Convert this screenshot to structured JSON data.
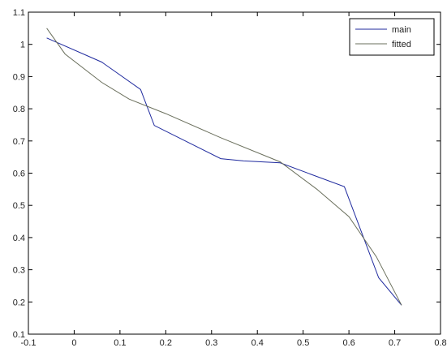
{
  "chart_data": {
    "type": "line",
    "title": "",
    "xlabel": "",
    "ylabel": "",
    "xlim": [
      -0.1,
      0.8
    ],
    "ylim": [
      0.1,
      1.1
    ],
    "xticks": [
      -0.1,
      0,
      0.1,
      0.2,
      0.3,
      0.4,
      0.5,
      0.6,
      0.7,
      0.8
    ],
    "yticks": [
      0.1,
      0.2,
      0.3,
      0.4,
      0.5,
      0.6,
      0.7,
      0.8,
      0.9,
      1,
      1.1
    ],
    "xtick_labels": [
      "-0.1",
      "0",
      "0.1",
      "0.2",
      "0.3",
      "0.4",
      "0.5",
      "0.6",
      "0.7",
      "0.8"
    ],
    "ytick_labels": [
      "0.1",
      "0.2",
      "0.3",
      "0.4",
      "0.5",
      "0.6",
      "0.7",
      "0.8",
      "0.9",
      "1",
      "1.1"
    ],
    "grid": false,
    "legend": "top-right",
    "series": [
      {
        "name": "main",
        "color": "#1f2a9e",
        "x": [
          -0.06,
          0.06,
          0.145,
          0.175,
          0.32,
          0.37,
          0.45,
          0.59,
          0.665,
          0.715
        ],
        "y": [
          1.02,
          0.945,
          0.86,
          0.748,
          0.645,
          0.638,
          0.632,
          0.558,
          0.275,
          0.19
        ]
      },
      {
        "name": "fitted",
        "color": "#6a6f5c",
        "x": [
          -0.06,
          -0.02,
          0.06,
          0.12,
          0.2,
          0.32,
          0.45,
          0.53,
          0.6,
          0.66,
          0.715
        ],
        "y": [
          1.05,
          0.97,
          0.882,
          0.83,
          0.785,
          0.71,
          0.635,
          0.55,
          0.465,
          0.34,
          0.19
        ]
      }
    ]
  }
}
